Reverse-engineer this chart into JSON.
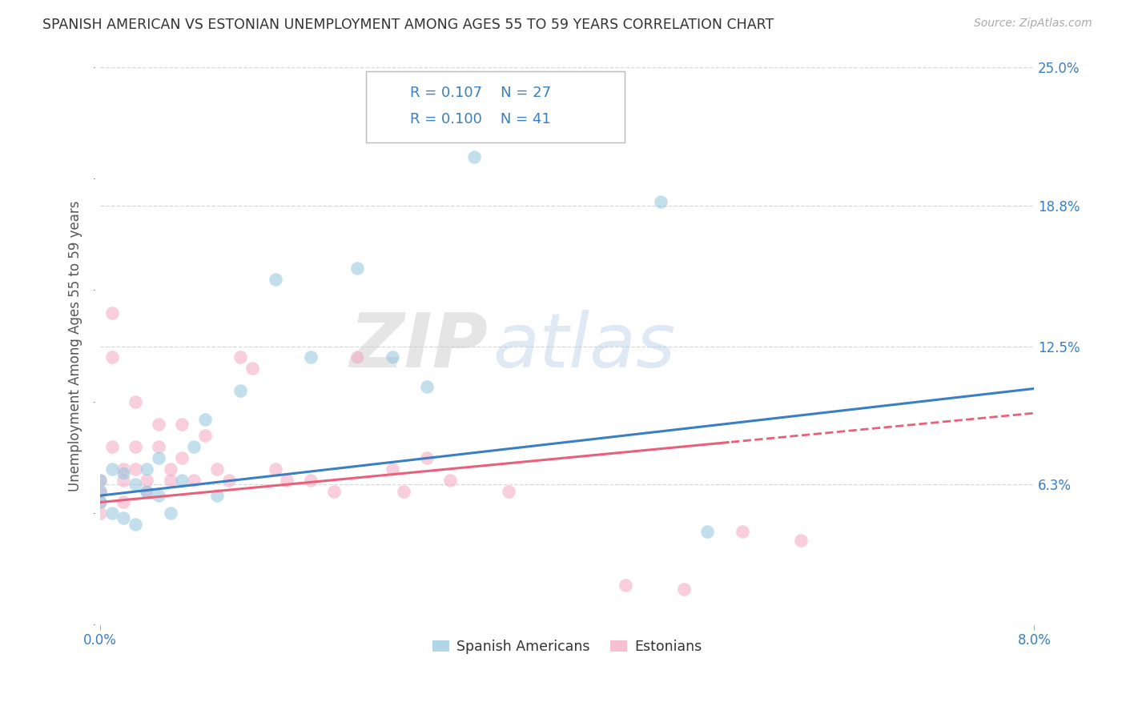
{
  "title": "SPANISH AMERICAN VS ESTONIAN UNEMPLOYMENT AMONG AGES 55 TO 59 YEARS CORRELATION CHART",
  "source": "Source: ZipAtlas.com",
  "ylabel": "Unemployment Among Ages 55 to 59 years",
  "xlim": [
    0.0,
    0.08
  ],
  "ylim": [
    0.0,
    0.25
  ],
  "ytick_labels": [
    "6.3%",
    "12.5%",
    "18.8%",
    "25.0%"
  ],
  "ytick_values": [
    0.063,
    0.125,
    0.188,
    0.25
  ],
  "r_blue": 0.107,
  "n_blue": 27,
  "r_pink": 0.1,
  "n_pink": 41,
  "blue_color": "#92c5de",
  "pink_color": "#f4a6c0",
  "blue_line_color": "#3a7fc1",
  "pink_line_color": "#e8607a",
  "watermark_zip": "ZIP",
  "watermark_atlas": "atlas",
  "blue_scatter_x": [
    0.0,
    0.0,
    0.0,
    0.001,
    0.001,
    0.002,
    0.002,
    0.003,
    0.003,
    0.004,
    0.004,
    0.005,
    0.005,
    0.006,
    0.007,
    0.008,
    0.009,
    0.01,
    0.012,
    0.015,
    0.018,
    0.022,
    0.025,
    0.028,
    0.032,
    0.048,
    0.052
  ],
  "blue_scatter_y": [
    0.065,
    0.06,
    0.055,
    0.07,
    0.05,
    0.068,
    0.048,
    0.063,
    0.045,
    0.07,
    0.06,
    0.075,
    0.058,
    0.05,
    0.065,
    0.08,
    0.092,
    0.058,
    0.105,
    0.155,
    0.12,
    0.16,
    0.12,
    0.107,
    0.21,
    0.19,
    0.042
  ],
  "pink_scatter_x": [
    0.0,
    0.0,
    0.0,
    0.0,
    0.001,
    0.001,
    0.001,
    0.002,
    0.002,
    0.002,
    0.003,
    0.003,
    0.003,
    0.004,
    0.004,
    0.005,
    0.005,
    0.006,
    0.006,
    0.007,
    0.007,
    0.008,
    0.009,
    0.01,
    0.011,
    0.012,
    0.013,
    0.015,
    0.016,
    0.018,
    0.02,
    0.022,
    0.025,
    0.026,
    0.028,
    0.03,
    0.035,
    0.045,
    0.05,
    0.055,
    0.06
  ],
  "pink_scatter_y": [
    0.06,
    0.065,
    0.055,
    0.05,
    0.14,
    0.12,
    0.08,
    0.07,
    0.065,
    0.055,
    0.1,
    0.08,
    0.07,
    0.065,
    0.06,
    0.09,
    0.08,
    0.07,
    0.065,
    0.09,
    0.075,
    0.065,
    0.085,
    0.07,
    0.065,
    0.12,
    0.115,
    0.07,
    0.065,
    0.065,
    0.06,
    0.12,
    0.07,
    0.06,
    0.075,
    0.065,
    0.06,
    0.018,
    0.016,
    0.042,
    0.038
  ],
  "legend_label_blue": "Spanish Americans",
  "legend_label_pink": "Estonians",
  "background_color": "#ffffff",
  "grid_color": "#d8d8d8",
  "blue_line_intercept": 0.058,
  "blue_line_slope": 0.6,
  "pink_line_intercept": 0.055,
  "pink_line_slope": 0.5
}
